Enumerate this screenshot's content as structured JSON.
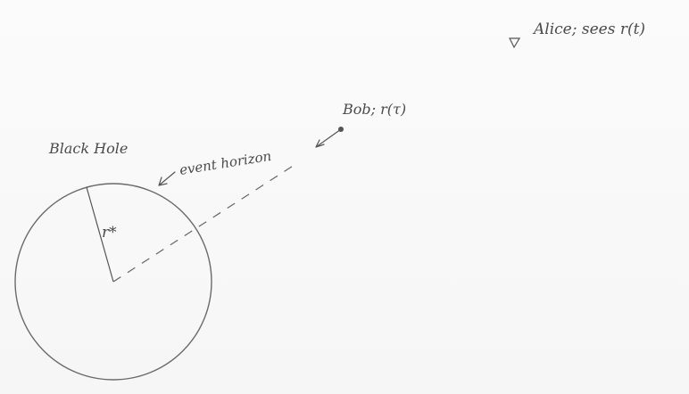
{
  "labels": {
    "black_hole": "Black Hole",
    "event_horizon": "event horizon",
    "radius": "r*",
    "bob": "Bob; r(τ)",
    "alice": "Alice; sees r(t)"
  },
  "colors": {
    "ink": "#5a5a5a",
    "paper": "#fafafa"
  },
  "icons": {
    "alice_marker": "triangle-down-icon",
    "bob_marker": "dot-icon"
  }
}
